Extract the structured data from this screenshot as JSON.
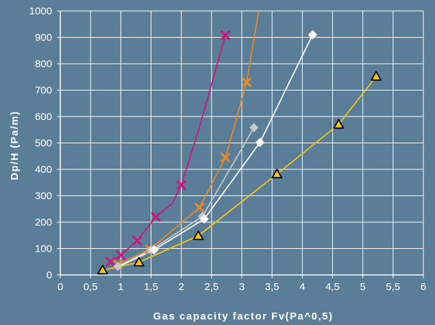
{
  "chart_data": {
    "type": "line",
    "xlabel": "Gas capacity factor Fv(Pa^0,5)",
    "ylabel": "Dp/H (Pa/m)",
    "xlim": [
      0,
      6
    ],
    "ylim": [
      0,
      1000
    ],
    "x_ticks": [
      "0",
      "0,5",
      "1",
      "1,5",
      "2",
      "2,5",
      "3",
      "3,5",
      "4",
      "4,5",
      "5",
      "5,5",
      "6"
    ],
    "y_ticks": [
      "0",
      "100",
      "200",
      "300",
      "400",
      "500",
      "600",
      "700",
      "800",
      "900",
      "1000"
    ],
    "grid": true,
    "background": "#5a7d98",
    "series": [
      {
        "color": "#c8177e",
        "marker": "x",
        "points": [
          [
            0.83,
            50
          ],
          [
            1.0,
            75
          ],
          [
            1.27,
            130
          ],
          [
            1.58,
            220
          ],
          [
            2.0,
            340
          ],
          [
            2.73,
            908
          ]
        ],
        "curve": [
          [
            0.83,
            50
          ],
          [
            1.0,
            75
          ],
          [
            1.27,
            130
          ],
          [
            1.58,
            220
          ],
          [
            1.85,
            270
          ],
          [
            2.0,
            340
          ],
          [
            2.3,
            560
          ],
          [
            2.73,
            908
          ]
        ]
      },
      {
        "color": "#e8892c",
        "marker": "x",
        "points": [
          [
            0.95,
            40
          ],
          [
            1.48,
            97
          ],
          [
            2.3,
            255
          ],
          [
            2.73,
            445
          ],
          [
            3.08,
            730
          ]
        ],
        "curve": [
          [
            0.95,
            40
          ],
          [
            1.48,
            97
          ],
          [
            2.3,
            255
          ],
          [
            2.73,
            445
          ],
          [
            3.08,
            730
          ],
          [
            3.28,
            1000
          ]
        ]
      },
      {
        "color": "#c8c8c8",
        "marker": "diamond",
        "points": [
          [
            0.95,
            32
          ],
          [
            1.5,
            95
          ],
          [
            2.35,
            222
          ],
          [
            3.2,
            558
          ]
        ],
        "curve": [
          [
            0.95,
            32
          ],
          [
            1.5,
            95
          ],
          [
            2.35,
            222
          ],
          [
            3.2,
            558
          ]
        ]
      },
      {
        "color": "#ffffff",
        "marker": "diamond",
        "points": [
          [
            1.55,
            95
          ],
          [
            2.38,
            212
          ],
          [
            3.3,
            502
          ],
          [
            4.17,
            910
          ]
        ],
        "curve": [
          [
            0.95,
            30
          ],
          [
            1.55,
            95
          ],
          [
            2.38,
            212
          ],
          [
            3.3,
            502
          ],
          [
            4.17,
            910
          ]
        ]
      },
      {
        "color": "#f5c518",
        "marker": "triangle",
        "points": [
          [
            0.7,
            18
          ],
          [
            1.3,
            48
          ],
          [
            2.28,
            148
          ],
          [
            3.58,
            382
          ],
          [
            4.6,
            570
          ],
          [
            5.22,
            752
          ]
        ],
        "curve": [
          [
            0.7,
            18
          ],
          [
            1.3,
            48
          ],
          [
            2.28,
            148
          ],
          [
            3.58,
            382
          ],
          [
            4.6,
            570
          ],
          [
            5.22,
            752
          ]
        ]
      }
    ]
  }
}
